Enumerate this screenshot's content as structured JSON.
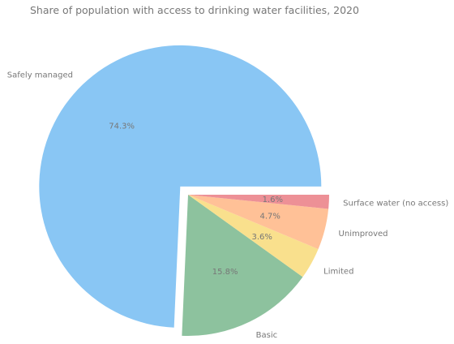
{
  "chart_data": {
    "type": "pie",
    "title": "Share of population with access to drinking water facilities, 2020",
    "slices": [
      {
        "label": "Safely managed",
        "value": 74.3,
        "pct_label": "74.3%",
        "color": "#89C6F4",
        "explode": true
      },
      {
        "label": "Basic",
        "value": 15.8,
        "pct_label": "15.8%",
        "color": "#8DC29E",
        "explode": false
      },
      {
        "label": "Limited",
        "value": 3.6,
        "pct_label": "3.6%",
        "color": "#F9E08D",
        "explode": false
      },
      {
        "label": "Unimproved",
        "value": 4.7,
        "pct_label": "4.7%",
        "color": "#FFC197",
        "explode": false
      },
      {
        "label": "Surface water (no access)",
        "value": 1.6,
        "pct_label": "1.6%",
        "color": "#ED9096",
        "explode": false
      }
    ],
    "label_color": "#777777",
    "grid": false,
    "legend": "none"
  }
}
